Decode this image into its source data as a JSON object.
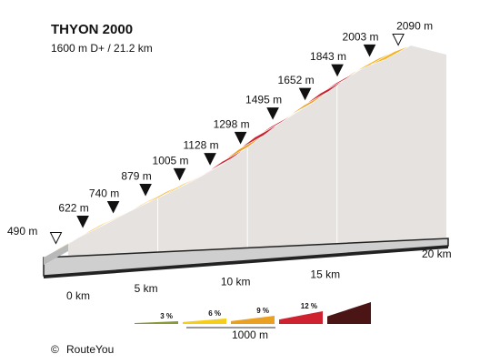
{
  "chart_data": {
    "type": "area",
    "title": "THYON 2000",
    "subtitle": "1600 m D+ / 21.2 km",
    "xunit": "km",
    "yunit": "m",
    "total_km": 21.2,
    "ylim": [
      490,
      2090
    ],
    "x_ticks": [
      {
        "km": 0,
        "label": "0 km"
      },
      {
        "km": 5,
        "label": "5 km"
      },
      {
        "km": 10,
        "label": "10 km"
      },
      {
        "km": 15,
        "label": "15 km"
      },
      {
        "km": 20,
        "label": "20 km"
      }
    ],
    "points": [
      {
        "km": 0,
        "elevation": 490,
        "label": "490 m"
      },
      {
        "km": 1.5,
        "elevation": 622,
        "label": "622 m"
      },
      {
        "km": 3.2,
        "elevation": 740,
        "label": "740 m"
      },
      {
        "km": 5.0,
        "elevation": 879,
        "label": "879 m"
      },
      {
        "km": 6.9,
        "elevation": 1005,
        "label": "1005 m"
      },
      {
        "km": 8.6,
        "elevation": 1128,
        "label": "1128 m"
      },
      {
        "km": 10.3,
        "elevation": 1298,
        "label": "1298 m"
      },
      {
        "km": 12.1,
        "elevation": 1495,
        "label": "1495 m"
      },
      {
        "km": 13.9,
        "elevation": 1652,
        "label": "1652 m"
      },
      {
        "km": 15.7,
        "elevation": 1843,
        "label": "1843 m"
      },
      {
        "km": 17.5,
        "elevation": 2003,
        "label": "2003 m"
      },
      {
        "km": 19.1,
        "elevation": 2090,
        "label": "2090 m"
      }
    ],
    "segment_gradients_pct": [
      3,
      6,
      6,
      6,
      6,
      6,
      6,
      6,
      9,
      12,
      12,
      9,
      12,
      12,
      6,
      9,
      12,
      12,
      9,
      6,
      6
    ],
    "gradient_classes": [
      {
        "label": "3 %",
        "color": "#8a9a3b"
      },
      {
        "label": "6 %",
        "color": "#f7cd1b"
      },
      {
        "label": "9 %",
        "color": "#eaa023"
      },
      {
        "label": "12 %",
        "color": "#cf2230"
      },
      {
        "label": "",
        "color": "#4a1514"
      }
    ],
    "segment_colors": {
      "3": "#f7cd1b",
      "6": "#f5b323",
      "9": "#eba024",
      "12": "#cf2230"
    },
    "legend_scale_label": "1000 m",
    "grid": false
  },
  "credit": "RouteYou"
}
